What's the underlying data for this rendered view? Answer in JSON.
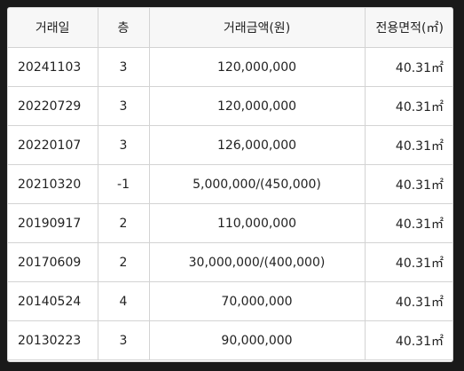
{
  "table": {
    "headers": [
      "거래일",
      "층",
      "거래금액(원)",
      "전용면적(㎡)"
    ],
    "rows": [
      {
        "date": "20241103",
        "floor": "3",
        "price": "120,000,000",
        "area": "40.31㎡"
      },
      {
        "date": "20220729",
        "floor": "3",
        "price": "120,000,000",
        "area": "40.31㎡"
      },
      {
        "date": "20220107",
        "floor": "3",
        "price": "126,000,000",
        "area": "40.31㎡"
      },
      {
        "date": "20210320",
        "floor": "-1",
        "price": "5,000,000/(450,000)",
        "area": "40.31㎡"
      },
      {
        "date": "20190917",
        "floor": "2",
        "price": "110,000,000",
        "area": "40.31㎡"
      },
      {
        "date": "20170609",
        "floor": "2",
        "price": "30,000,000/(400,000)",
        "area": "40.31㎡"
      },
      {
        "date": "20140524",
        "floor": "4",
        "price": "70,000,000",
        "area": "40.31㎡"
      },
      {
        "date": "20130223",
        "floor": "3",
        "price": "90,000,000",
        "area": "40.31㎡"
      }
    ]
  }
}
